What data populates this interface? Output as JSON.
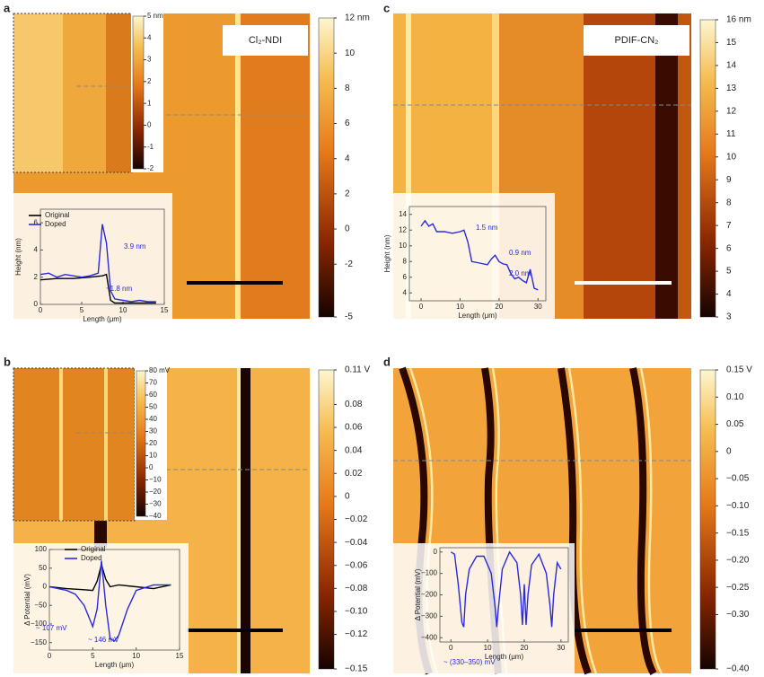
{
  "panels": [
    {
      "label": "a",
      "image_title": "Cl₂-NDI",
      "colorbar": {
        "lim": [
          -5,
          12
        ],
        "ticks": [
          {
            "value": 12,
            "label": "12 nm"
          },
          10,
          8,
          6,
          4,
          2,
          0,
          -2,
          -5
        ]
      },
      "inset_colorbar": {
        "lim": [
          -2,
          5
        ],
        "ticks": [
          {
            "value": 5,
            "label": "5 nm"
          },
          4,
          3,
          2,
          1,
          0,
          -1,
          -2
        ]
      },
      "profile": {
        "xlabel": "Length (μm)",
        "ylabel": "Height (nm)",
        "xlim": [
          0,
          15
        ],
        "ylim": [
          0,
          7
        ],
        "xticks": [
          0,
          5,
          10,
          15
        ],
        "yticks": [
          0,
          2,
          4,
          6
        ],
        "series": [
          {
            "name": "Original",
            "color": "#000000",
            "x": [
              0,
              2,
              4,
              6,
              7.5,
              8,
              8.5,
              9,
              10,
              12,
              14
            ],
            "values": [
              1.8,
              1.9,
              1.9,
              2.0,
              2.1,
              2.2,
              0.3,
              0.1,
              0.1,
              0.1,
              0.1
            ]
          },
          {
            "name": "Doped",
            "color": "#2a2adf",
            "x": [
              0,
              1,
              2,
              3,
              4,
              5,
              6,
              7,
              7.5,
              8,
              8.5,
              9,
              10,
              11,
              12,
              13,
              14
            ],
            "values": [
              2.2,
              2.3,
              2.0,
              2.2,
              2.1,
              2.0,
              2.1,
              2.3,
              5.9,
              4.5,
              1.0,
              0.4,
              0.3,
              0.2,
              0.3,
              0.2,
              0.2
            ]
          }
        ],
        "annotations": [
          "3.9 nm",
          "~1.8 nm"
        ]
      }
    },
    {
      "label": "b",
      "colorbar": {
        "lim": [
          -0.15,
          0.11
        ],
        "ticks": [
          {
            "value": 0.11,
            "label": "0.11 V"
          },
          0.08,
          0.06,
          0.04,
          0.02,
          0,
          {
            "value": -0.02,
            "label": "−0.02"
          },
          {
            "value": -0.04,
            "label": "−0.04"
          },
          {
            "value": -0.06,
            "label": "−0.06"
          },
          {
            "value": -0.08,
            "label": "−0.08"
          },
          {
            "value": -0.1,
            "label": "−0.10"
          },
          {
            "value": -0.12,
            "label": "−0.12"
          },
          {
            "value": -0.15,
            "label": "−0.15"
          }
        ]
      },
      "inset_colorbar": {
        "lim": [
          -40,
          80
        ],
        "ticks": [
          {
            "value": 80,
            "label": "80 mV"
          },
          70,
          60,
          50,
          40,
          30,
          20,
          10,
          0,
          {
            "value": -10,
            "label": "−10"
          },
          {
            "value": -20,
            "label": "−20"
          },
          {
            "value": -30,
            "label": "−30"
          },
          {
            "value": -40,
            "label": "−40"
          }
        ]
      },
      "profile": {
        "xlabel": "Length (μm)",
        "ylabel": "Δ Potential (mV)",
        "xlim": [
          0,
          15
        ],
        "ylim": [
          -170,
          100
        ],
        "xticks": [
          0,
          5,
          10,
          15
        ],
        "yticks": [
          100,
          50,
          0,
          {
            "value": -50,
            "label": "−50"
          },
          {
            "value": -100,
            "label": "−100"
          },
          {
            "value": -150,
            "label": "−150"
          }
        ],
        "series": [
          {
            "name": "Original",
            "color": "#000000",
            "x": [
              0,
              2,
              4,
              5,
              5.5,
              6,
              6.5,
              7,
              8,
              10,
              12,
              14
            ],
            "values": [
              0,
              -5,
              -8,
              -10,
              15,
              60,
              20,
              0,
              5,
              0,
              -5,
              5
            ]
          },
          {
            "name": "Doped",
            "color": "#2a2adf",
            "x": [
              0,
              1,
              2,
              3,
              4,
              5,
              5.5,
              6,
              6.5,
              7,
              7.5,
              8,
              9,
              10,
              12,
              14
            ],
            "values": [
              0,
              -5,
              -10,
              -20,
              -50,
              -107,
              -60,
              70,
              -50,
              -140,
              -146,
              -130,
              -60,
              -10,
              5,
              5
            ]
          }
        ],
        "annotations": [
          "~ 107 mV",
          "~ 146 mV"
        ]
      }
    },
    {
      "label": "c",
      "image_title": "PDIF-CN₂",
      "colorbar": {
        "lim": [
          3,
          16
        ],
        "ticks": [
          {
            "value": 16,
            "label": "16 nm"
          },
          15,
          14,
          13,
          12,
          11,
          10,
          9,
          8,
          7,
          6,
          5,
          4,
          3
        ]
      },
      "profile": {
        "xlabel": "Length (μm)",
        "ylabel": "Height (nm)",
        "xlim": [
          -3,
          32
        ],
        "ylim": [
          3,
          15
        ],
        "xticks": [
          0,
          10,
          20,
          30
        ],
        "yticks": [
          4,
          6,
          8,
          10,
          12,
          14
        ],
        "series": [
          {
            "color": "#2a2adf",
            "x": [
              0,
              1,
              2,
              3,
              4,
              6,
              8,
              10,
              11,
              12,
              13,
              15,
              17,
              18,
              19,
              20,
              21,
              22,
              23,
              24,
              25,
              26,
              27,
              28,
              29,
              30
            ],
            "values": [
              12.5,
              13.2,
              12.5,
              12.8,
              11.8,
              11.8,
              11.6,
              11.8,
              12.0,
              10.5,
              8.0,
              7.8,
              7.6,
              8.3,
              8.8,
              8.0,
              7.7,
              7.6,
              6.5,
              5.8,
              6.0,
              5.6,
              5.3,
              7.0,
              4.6,
              4.4
            ]
          }
        ],
        "annotations": [
          "1.5 nm",
          "0.9 nm",
          "2.0 nm"
        ]
      }
    },
    {
      "label": "d",
      "colorbar": {
        "lim": [
          -0.4,
          0.15
        ],
        "ticks": [
          {
            "value": 0.15,
            "label": "0.15 V"
          },
          {
            "value": 0.1,
            "label": "0.10"
          },
          0.05,
          0,
          {
            "value": -0.05,
            "label": "−0.05"
          },
          {
            "value": -0.1,
            "label": "−0.10"
          },
          {
            "value": -0.15,
            "label": "−0.15"
          },
          {
            "value": -0.2,
            "label": "−0.20"
          },
          {
            "value": -0.25,
            "label": "−0.25"
          },
          {
            "value": -0.3,
            "label": "−0.30"
          },
          {
            "value": -0.4,
            "label": "−0.40"
          }
        ]
      },
      "profile": {
        "xlabel": "Length (μm)",
        "ylabel": "Δ Potential (mV)",
        "xlim": [
          -3,
          32
        ],
        "ylim": [
          -420,
          20
        ],
        "xticks": [
          0,
          10,
          20,
          30
        ],
        "yticks": [
          0,
          {
            "value": -100,
            "label": "−100"
          },
          {
            "value": -200,
            "label": "−200"
          },
          {
            "value": -300,
            "label": "−300"
          },
          {
            "value": -400,
            "label": "−400"
          }
        ],
        "series": [
          {
            "color": "#2a2adf",
            "x": [
              0,
              1,
              2,
              3,
              3.5,
              4,
              5,
              7,
              9,
              11,
              12,
              12.5,
              13,
              14,
              16,
              18,
              19,
              19.5,
              20,
              20.5,
              21,
              22,
              24,
              26,
              27,
              27.5,
              28,
              29,
              30
            ],
            "values": [
              0,
              -10,
              -150,
              -330,
              -350,
              -200,
              -80,
              -20,
              -20,
              -100,
              -250,
              -350,
              -250,
              -80,
              0,
              -50,
              -200,
              -340,
              -150,
              -340,
              -200,
              -60,
              -10,
              -100,
              -250,
              -350,
              -200,
              -50,
              -80
            ]
          }
        ],
        "annotations": [
          "~ (330–350) mV"
        ]
      }
    }
  ]
}
